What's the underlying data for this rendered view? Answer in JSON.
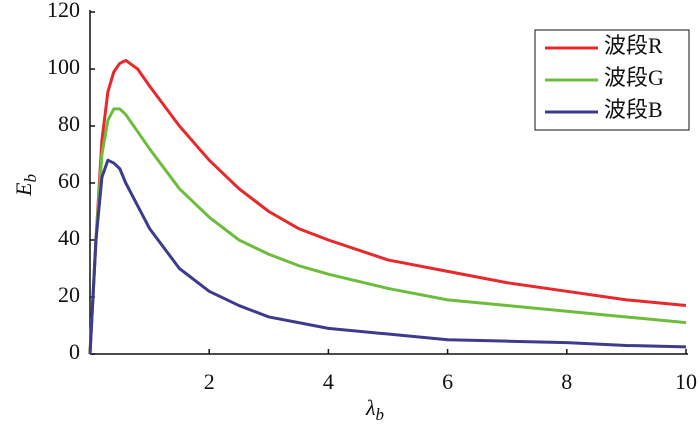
{
  "chart_data": {
    "type": "line",
    "x": [
      0,
      0.1,
      0.2,
      0.3,
      0.4,
      0.5,
      0.6,
      0.8,
      1,
      1.5,
      2,
      2.5,
      3,
      3.5,
      4,
      5,
      6,
      7,
      8,
      9,
      10
    ],
    "series": [
      {
        "name": "波段R",
        "color": "#e8282a",
        "values": [
          0,
          40,
          75,
          92,
          99,
          102,
          103,
          100,
          94,
          80,
          68,
          58,
          50,
          44,
          40,
          33,
          29,
          25,
          22,
          19,
          17
        ]
      },
      {
        "name": "波段G",
        "color": "#6cbd3c",
        "values": [
          0,
          40,
          70,
          82,
          86,
          86,
          84,
          78,
          72,
          58,
          48,
          40,
          35,
          31,
          28,
          23,
          19,
          17,
          15,
          13,
          11
        ]
      },
      {
        "name": "波段B",
        "color": "#3d3b8e",
        "values": [
          0,
          40,
          62,
          68,
          67,
          65,
          60,
          52,
          44,
          30,
          22,
          17,
          13,
          11,
          9,
          7,
          5,
          4.5,
          4,
          3,
          2.5
        ]
      }
    ],
    "xlabel": "λ",
    "xlabel_sub": "b",
    "ylabel": "E",
    "ylabel_sub": "b",
    "xlim": [
      0,
      10
    ],
    "xticks": [
      2,
      4,
      6,
      8,
      10
    ],
    "ylim": [
      0,
      120
    ],
    "yticks": [
      0,
      20,
      40,
      60,
      80,
      100,
      120
    ],
    "legend": "upper right",
    "grid": false
  }
}
